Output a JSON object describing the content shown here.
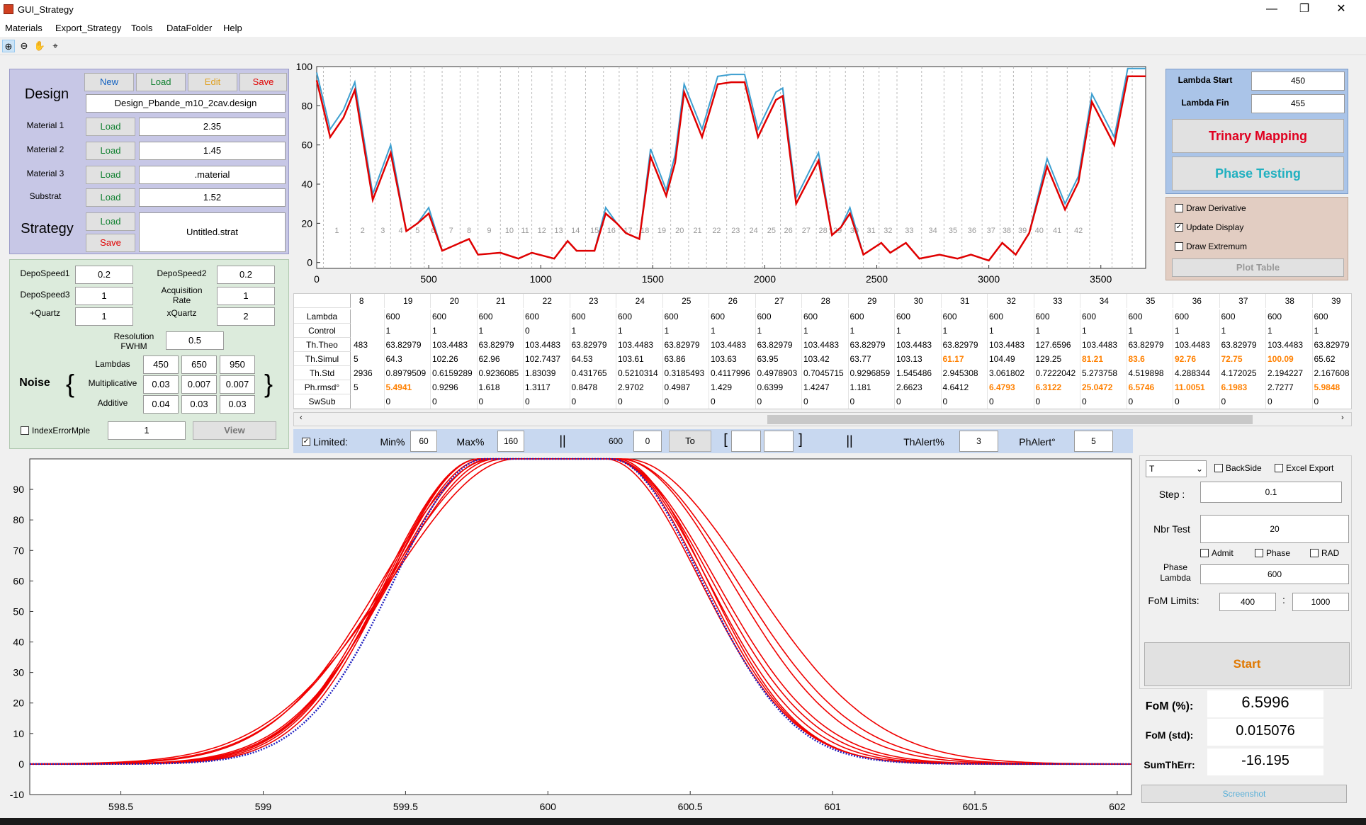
{
  "window": {
    "title": "GUI_Strategy",
    "min": "—",
    "max": "❐",
    "close": "✕"
  },
  "menu": [
    "Materials",
    "Export_Strategy",
    "Tools",
    "DataFolder",
    "Help"
  ],
  "design": {
    "label": "Design",
    "new": "New",
    "load": "Load",
    "edit": "Edit",
    "save": "Save",
    "file": "Design_Pbande_m10_2cav.design",
    "materials": [
      {
        "label": "Material 1",
        "btn": "Load",
        "value": "2.35"
      },
      {
        "label": "Material 2",
        "btn": "Load",
        "value": "1.45"
      },
      {
        "label": "Material 3",
        "btn": "Load",
        "value": ".material"
      },
      {
        "label": "Substrat",
        "btn": "Load",
        "value": "1.52"
      }
    ],
    "strategy_label": "Strategy",
    "strategy_load": "Load",
    "strategy_save": "Save",
    "strategy_file": "Untitled.strat"
  },
  "params": {
    "depo1_label": "DepoSpeed1",
    "depo1": "0.2",
    "depo2_label": "DepoSpeed2",
    "depo2": "0.2",
    "depo3_label": "DepoSpeed3",
    "depo3": "1",
    "acq_label1": "Acquisition",
    "acq_label2": "Rate",
    "acq": "1",
    "quartz_label": "+Quartz",
    "quartz": "1",
    "xquartz_label": "xQuartz",
    "xquartz": "2",
    "res_label1": "Resolution",
    "res_label2": "FWHM",
    "res": "0.5",
    "noise_label": "Noise",
    "lambdas_label": "Lambdas",
    "lambdas": [
      "450",
      "650",
      "950"
    ],
    "mult_label": "Multiplicative",
    "mult": [
      "0.03",
      "0.007",
      "0.007"
    ],
    "add_label": "Additive",
    "add": [
      "0.04",
      "0.03",
      "0.03"
    ],
    "index_label": "IndexErrorMple",
    "index": "1",
    "view": "View",
    "brace_l": "{",
    "brace_r": "}"
  },
  "lambda": {
    "start_label": "Lambda Start",
    "start": "450",
    "fin_label": "Lambda Fin",
    "fin": "455",
    "trinary": "Trinary Mapping",
    "phase": "Phase Testing"
  },
  "options": {
    "deriv": "Draw Derivative",
    "update": "Update Display",
    "extremum": "Draw Extremum",
    "plot_table": "Plot Table"
  },
  "top_chart": {
    "x_ticks": [
      "0",
      "500",
      "1000",
      "1500",
      "2000",
      "2500",
      "3000",
      "3500"
    ],
    "y_ticks": [
      "0",
      "20",
      "40",
      "60",
      "80",
      "100"
    ],
    "layer_labels": [
      "1",
      "2",
      "3",
      "4",
      "5",
      "6",
      "7",
      "8",
      "9",
      "10",
      "11",
      "12",
      "13",
      "14",
      "15",
      "16",
      "17",
      "18",
      "19",
      "20",
      "21",
      "22",
      "23",
      "24",
      "25",
      "26",
      "27",
      "28",
      "29",
      "30",
      "31",
      "32",
      "33",
      "34",
      "35",
      "36",
      "37",
      "38",
      "39",
      "40",
      "41",
      "42"
    ]
  },
  "table": {
    "columns": [
      "8",
      "19",
      "20",
      "21",
      "22",
      "23",
      "24",
      "25",
      "26",
      "27",
      "28",
      "29",
      "30",
      "31",
      "32",
      "33",
      "34",
      "35",
      "36",
      "37",
      "38",
      "39"
    ],
    "rows": [
      {
        "name": "Lambda",
        "cells": [
          "",
          "600",
          "600",
          "600",
          "600",
          "600",
          "600",
          "600",
          "600",
          "600",
          "600",
          "600",
          "600",
          "600",
          "600",
          "600",
          "600",
          "600",
          "600",
          "600",
          "600",
          "600"
        ]
      },
      {
        "name": "Control",
        "cells": [
          "",
          "1",
          "1",
          "1",
          "0",
          "1",
          "1",
          "1",
          "1",
          "1",
          "1",
          "1",
          "1",
          "1",
          "1",
          "1",
          "1",
          "1",
          "1",
          "1",
          "1",
          "1"
        ]
      },
      {
        "name": "Th.Theo",
        "cells": [
          "483",
          "63.82979",
          "103.4483",
          "63.82979",
          "103.4483",
          "63.82979",
          "103.4483",
          "63.82979",
          "103.4483",
          "63.82979",
          "103.4483",
          "63.82979",
          "103.4483",
          "63.82979",
          "103.4483",
          "127.6596",
          "103.4483",
          "63.82979",
          "103.4483",
          "63.82979",
          "103.4483",
          "63.82979"
        ]
      },
      {
        "name": "Th.Simul",
        "cells": [
          "5",
          "64.3",
          "102.26",
          "62.96",
          "102.7437",
          "64.53",
          "103.61",
          "63.86",
          "103.63",
          "63.95",
          "103.42",
          "63.77",
          "103.13",
          "61.17",
          "104.49",
          "129.25",
          "81.21",
          "83.6",
          "92.76",
          "72.75",
          "100.09",
          "65.62"
        ],
        "warn": [
          13,
          16,
          17,
          18,
          19,
          20
        ]
      },
      {
        "name": "Th.Std",
        "cells": [
          "2936",
          "0.8979509",
          "0.6159289",
          "0.9236085",
          "1.83039",
          "0.431765",
          "0.5210314",
          "0.3185493",
          "0.4117996",
          "0.4978903",
          "0.7045715",
          "0.9296859",
          "1.545486",
          "2.945308",
          "3.061802",
          "0.7222042",
          "5.273758",
          "4.519898",
          "4.288344",
          "4.172025",
          "2.194227",
          "2.167608"
        ]
      },
      {
        "name": "Ph.rmsd°",
        "cells": [
          "5",
          "5.4941",
          "0.9296",
          "1.618",
          "1.3117",
          "0.8478",
          "2.9702",
          "0.4987",
          "1.429",
          "0.6399",
          "1.4247",
          "1.181",
          "2.6623",
          "4.6412",
          "6.4793",
          "6.3122",
          "25.0472",
          "6.5746",
          "11.0051",
          "6.1983",
          "2.7277",
          "5.9848"
        ],
        "warn": [
          1,
          14,
          15,
          16,
          17,
          18,
          19,
          21
        ]
      },
      {
        "name": "SwSub",
        "cells": [
          "",
          "0",
          "0",
          "0",
          "0",
          "0",
          "0",
          "0",
          "0",
          "0",
          "0",
          "0",
          "0",
          "0",
          "0",
          "0",
          "0",
          "0",
          "0",
          "0",
          "0",
          "0"
        ]
      }
    ]
  },
  "limits": {
    "limited": "Limited:",
    "min_label": "Min%",
    "min": "60",
    "max_label": "Max%",
    "max": "160",
    "sep": "||",
    "v600": "600",
    "v0": "0",
    "to": "To",
    "bl": "[",
    "br": "]",
    "sep2": "||",
    "thalert_label": "ThAlert%",
    "thalert": "3",
    "phalert_label": "PhAlert°",
    "phalert": "5"
  },
  "right": {
    "select": "T",
    "backside": "BackSide",
    "excel": "Excel Export",
    "step_label": "Step :",
    "step": "0.1",
    "nbr_label": "Nbr Test",
    "nbr": "20",
    "admit": "Admit",
    "phase": "Phase",
    "rad": "RAD",
    "phase_lambda_label1": "Phase",
    "phase_lambda_label2": "Lambda",
    "phase_lambda": "600",
    "fom_label": "FoM Limits:",
    "fom_min": "400",
    "colon": ":",
    "fom_max": "1000",
    "start": "Start",
    "fom_pct_label": "FoM (%):",
    "fom_pct": "6.5996",
    "fom_std_label": "FoM (std):",
    "fom_std": "0.015076",
    "sumth_label": "SumThErr:",
    "sumth": "-16.195",
    "screenshot": "Screenshot"
  },
  "bottom_chart": {
    "x_ticks": [
      "598.5",
      "599",
      "599.5",
      "600",
      "600.5",
      "601",
      "601.5",
      "602"
    ],
    "y_ticks": [
      "-10",
      "0",
      "10",
      "20",
      "30",
      "40",
      "50",
      "60",
      "70",
      "80",
      "90"
    ]
  }
}
